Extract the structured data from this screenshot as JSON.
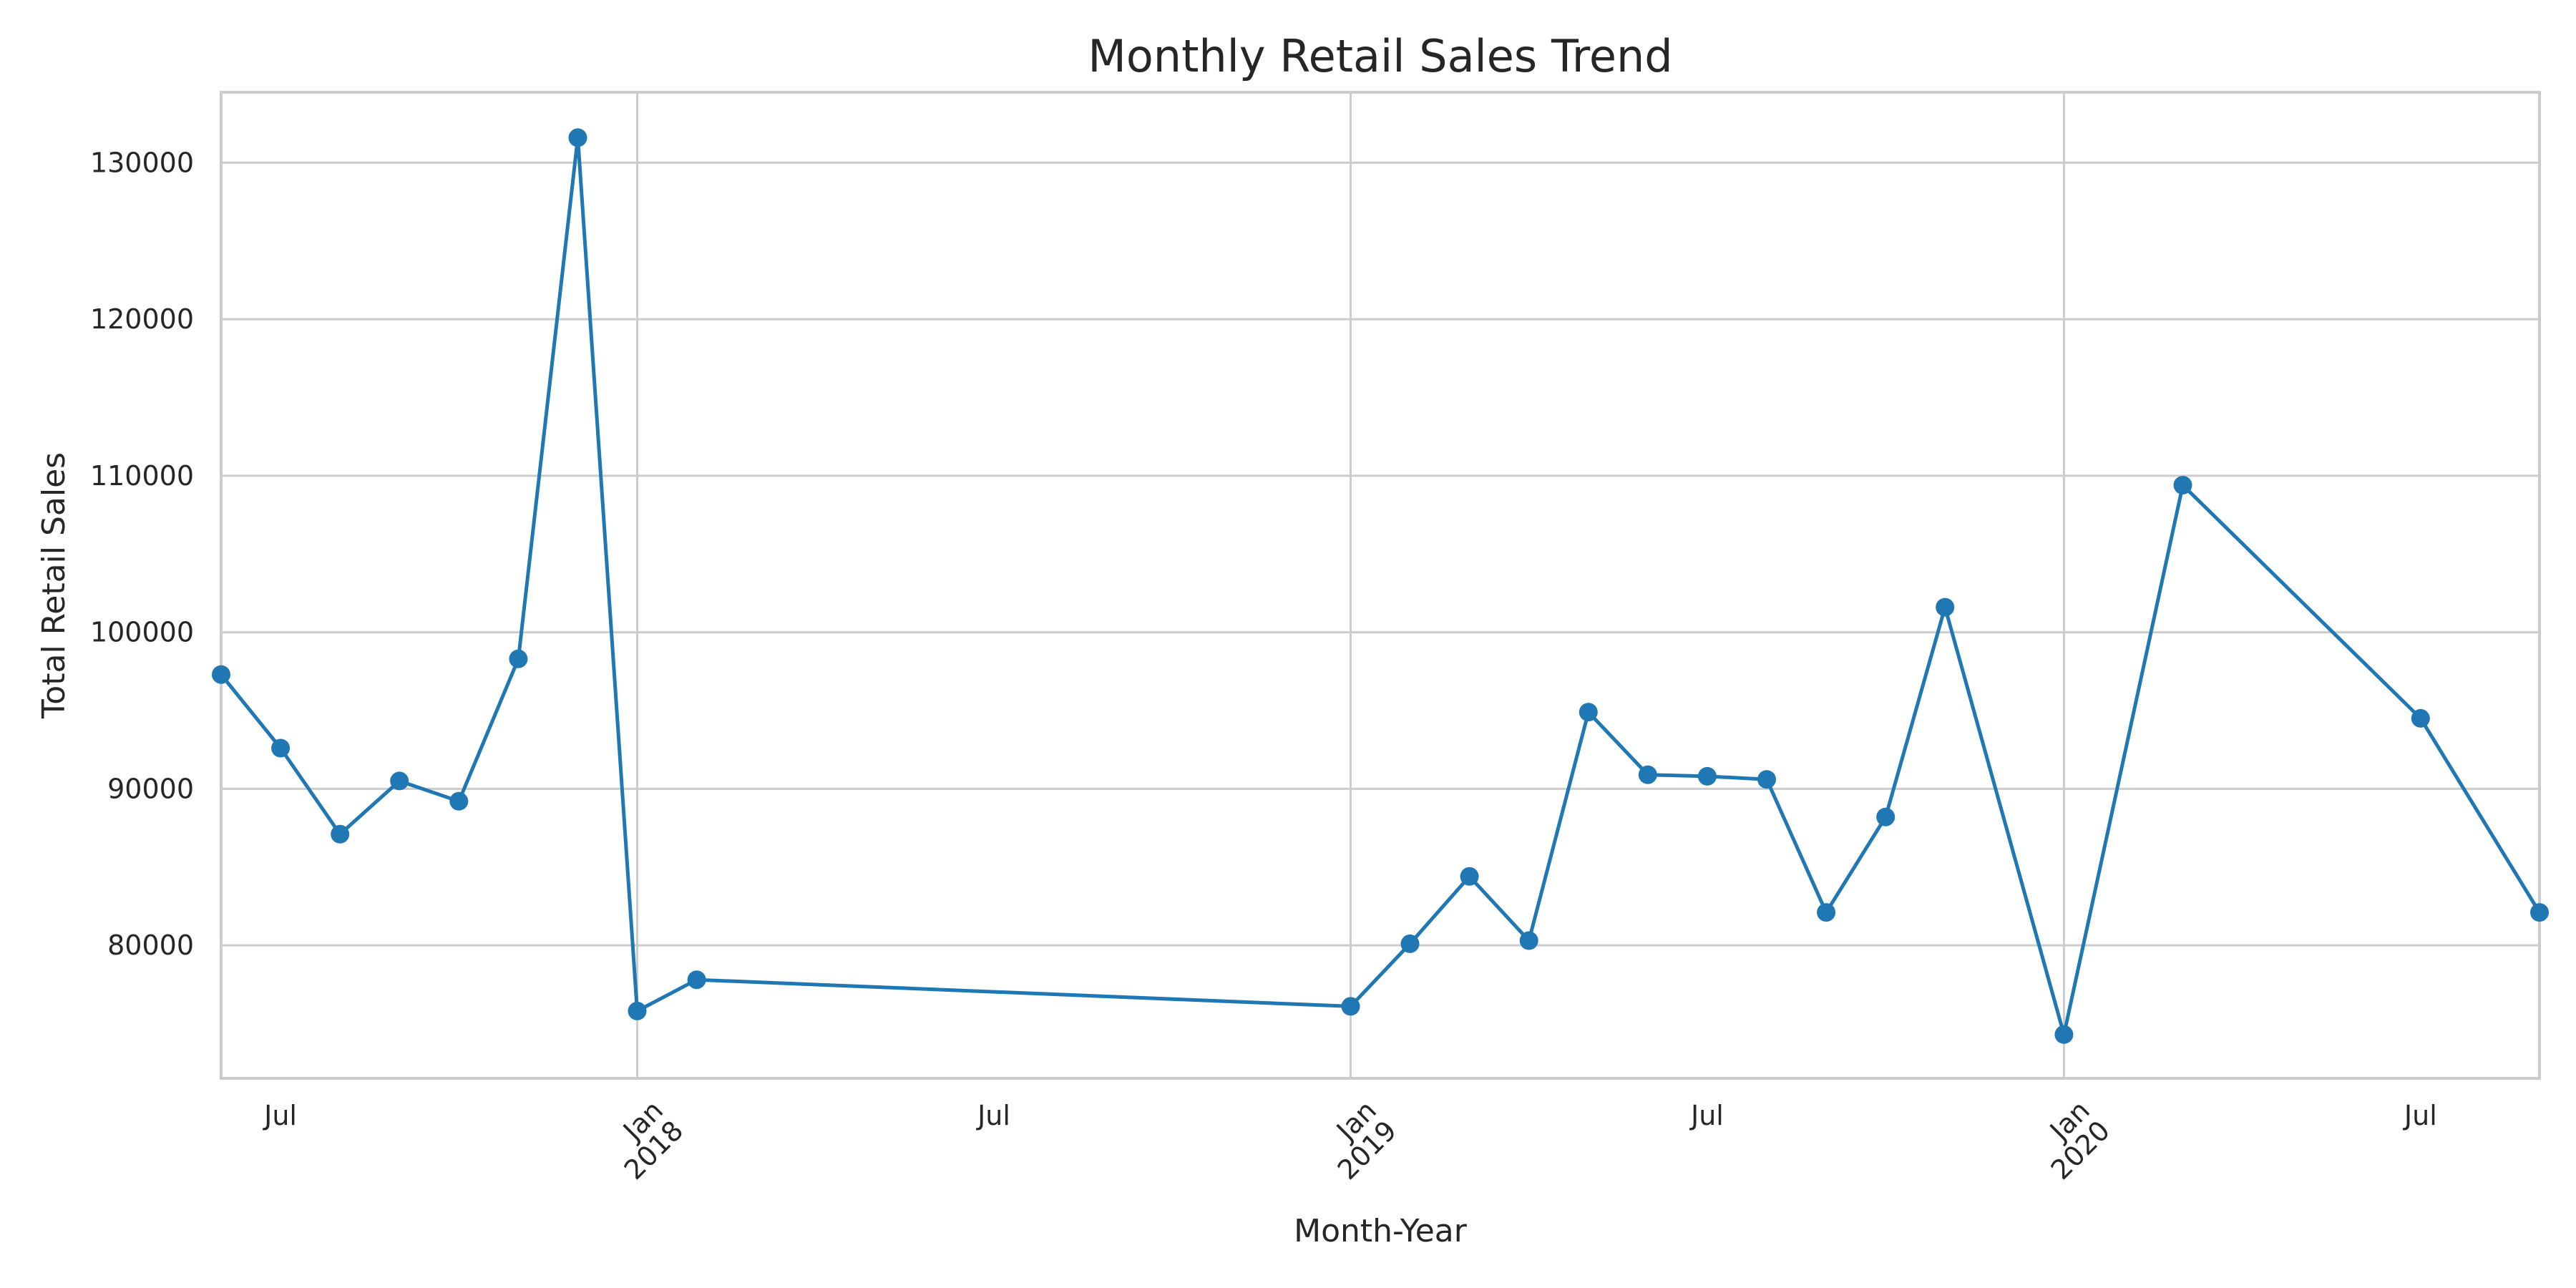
{
  "chart_data": {
    "type": "line",
    "title": "Monthly Retail Sales Trend",
    "xlabel": "Month-Year",
    "ylabel": "Total Retail Sales",
    "grid": true,
    "series_color": "#1f77b4",
    "xlim": [
      "2017-06",
      "2020-09"
    ],
    "ylim": [
      71500,
      134500
    ],
    "y_ticks": [
      80000,
      90000,
      100000,
      110000,
      120000,
      130000
    ],
    "x_ticks": [
      {
        "date": "2017-07",
        "label": "Jul",
        "rotated": false
      },
      {
        "date": "2018-01",
        "label": "Jan\n2018",
        "rotated": true
      },
      {
        "date": "2018-07",
        "label": "Jul",
        "rotated": false
      },
      {
        "date": "2019-01",
        "label": "Jan\n2019",
        "rotated": true
      },
      {
        "date": "2019-07",
        "label": "Jul",
        "rotated": false
      },
      {
        "date": "2020-01",
        "label": "Jan\n2020",
        "rotated": true
      },
      {
        "date": "2020-07",
        "label": "Jul",
        "rotated": false
      }
    ],
    "series": [
      {
        "points": [
          {
            "x": "2017-06",
            "y": 97300
          },
          {
            "x": "2017-07",
            "y": 92600
          },
          {
            "x": "2017-08",
            "y": 87100
          },
          {
            "x": "2017-09",
            "y": 90500
          },
          {
            "x": "2017-10",
            "y": 89200
          },
          {
            "x": "2017-11",
            "y": 98300
          },
          {
            "x": "2017-12",
            "y": 131600
          },
          {
            "x": "2018-01",
            "y": 75800
          },
          {
            "x": "2018-02",
            "y": 77800
          },
          {
            "x": "2019-01",
            "y": 76100
          },
          {
            "x": "2019-02",
            "y": 80100
          },
          {
            "x": "2019-03",
            "y": 84400
          },
          {
            "x": "2019-04",
            "y": 80300
          },
          {
            "x": "2019-05",
            "y": 94900
          },
          {
            "x": "2019-06",
            "y": 90900
          },
          {
            "x": "2019-07",
            "y": 90800
          },
          {
            "x": "2019-08",
            "y": 90600
          },
          {
            "x": "2019-09",
            "y": 82100
          },
          {
            "x": "2019-10",
            "y": 88200
          },
          {
            "x": "2019-11",
            "y": 101600
          },
          {
            "x": "2020-01",
            "y": 74300
          },
          {
            "x": "2020-03",
            "y": 109400
          },
          {
            "x": "2020-07",
            "y": 94500
          },
          {
            "x": "2020-09",
            "y": 82100
          }
        ]
      }
    ]
  }
}
